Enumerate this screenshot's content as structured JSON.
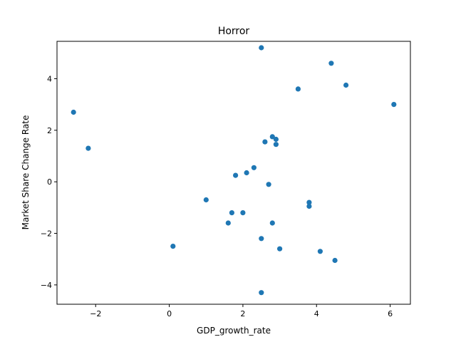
{
  "chart_data": {
    "type": "scatter",
    "title": "Horror",
    "xlabel": "GDP_growth_rate",
    "ylabel": "Market Share Change Rate",
    "xlim": [
      -3.05,
      6.55
    ],
    "ylim": [
      -4.75,
      5.45
    ],
    "xticks": [
      -2,
      0,
      2,
      4,
      6
    ],
    "yticks": [
      -4,
      -2,
      0,
      2,
      4
    ],
    "xtick_labels": [
      "−2",
      "0",
      "2",
      "4",
      "6"
    ],
    "ytick_labels": [
      "−4",
      "−2",
      "0",
      "2",
      "4"
    ],
    "grid": false,
    "color": "#1f77b4",
    "points": [
      {
        "x": -2.6,
        "y": 2.7
      },
      {
        "x": -2.2,
        "y": 1.3
      },
      {
        "x": 0.1,
        "y": -2.5
      },
      {
        "x": 1.0,
        "y": -0.7
      },
      {
        "x": 1.6,
        "y": -1.6
      },
      {
        "x": 1.7,
        "y": -1.2
      },
      {
        "x": 1.8,
        "y": 0.25
      },
      {
        "x": 2.0,
        "y": -1.2
      },
      {
        "x": 2.1,
        "y": 0.35
      },
      {
        "x": 2.3,
        "y": 0.55
      },
      {
        "x": 2.5,
        "y": 5.2
      },
      {
        "x": 2.5,
        "y": -2.2
      },
      {
        "x": 2.5,
        "y": -4.3
      },
      {
        "x": 2.6,
        "y": 1.55
      },
      {
        "x": 2.7,
        "y": -0.1
      },
      {
        "x": 2.8,
        "y": 1.75
      },
      {
        "x": 2.8,
        "y": -1.6
      },
      {
        "x": 2.9,
        "y": 1.65
      },
      {
        "x": 2.9,
        "y": 1.45
      },
      {
        "x": 3.0,
        "y": -2.6
      },
      {
        "x": 3.5,
        "y": 3.6
      },
      {
        "x": 3.8,
        "y": -0.8
      },
      {
        "x": 3.8,
        "y": -0.95
      },
      {
        "x": 4.1,
        "y": -2.7
      },
      {
        "x": 4.4,
        "y": 4.6
      },
      {
        "x": 4.5,
        "y": -3.05
      },
      {
        "x": 4.8,
        "y": 3.75
      },
      {
        "x": 6.1,
        "y": 3.0
      }
    ]
  }
}
